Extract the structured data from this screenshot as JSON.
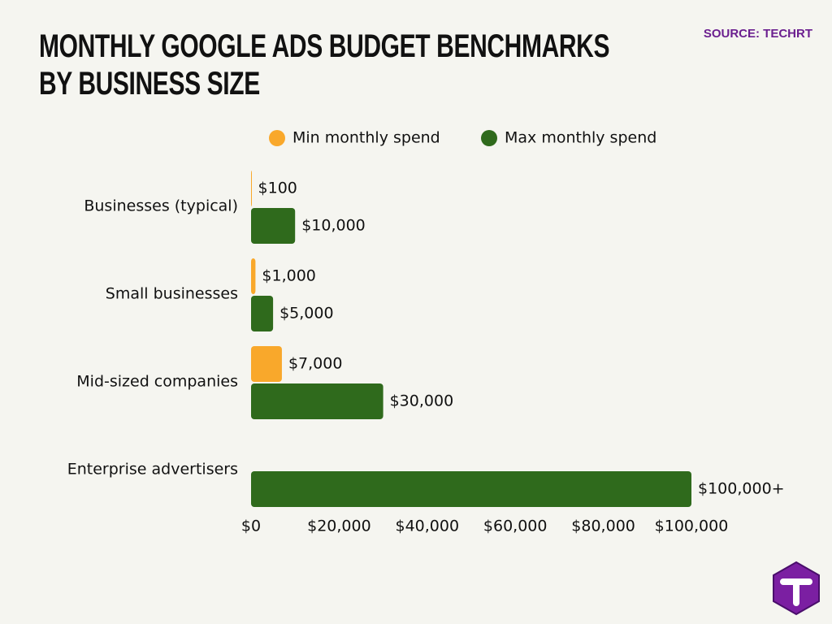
{
  "chart_data": {
    "type": "bar",
    "orientation": "horizontal",
    "title": "MONTHLY GOOGLE ADS BUDGET BENCHMARKS BY BUSINESS SIZE",
    "source": "SOURCE: TECHRT",
    "categories": [
      "Businesses (typical)",
      "Small businesses",
      "Mid-sized companies",
      "Enterprise advertisers"
    ],
    "series": [
      {
        "name": "Min monthly spend",
        "color": "#f9a82b",
        "values": [
          100,
          1000,
          7000,
          null
        ],
        "value_labels": [
          "$100",
          "$1,000",
          "$7,000",
          null
        ]
      },
      {
        "name": "Max monthly spend",
        "color": "#2f6a1c",
        "values": [
          10000,
          5000,
          30000,
          100000
        ],
        "value_labels": [
          "$10,000",
          "$5,000",
          "$30,000",
          "$100,000+"
        ]
      }
    ],
    "xlim": [
      0,
      100000
    ],
    "xticks": [
      {
        "value": 0,
        "label": "$0"
      },
      {
        "value": 20000,
        "label": "$20,000"
      },
      {
        "value": 40000,
        "label": "$40,000"
      },
      {
        "value": 60000,
        "label": "$60,000"
      },
      {
        "value": 80000,
        "label": "$80,000"
      },
      {
        "value": 100000,
        "label": "$100,000"
      }
    ],
    "grid": false,
    "legend": "top"
  }
}
